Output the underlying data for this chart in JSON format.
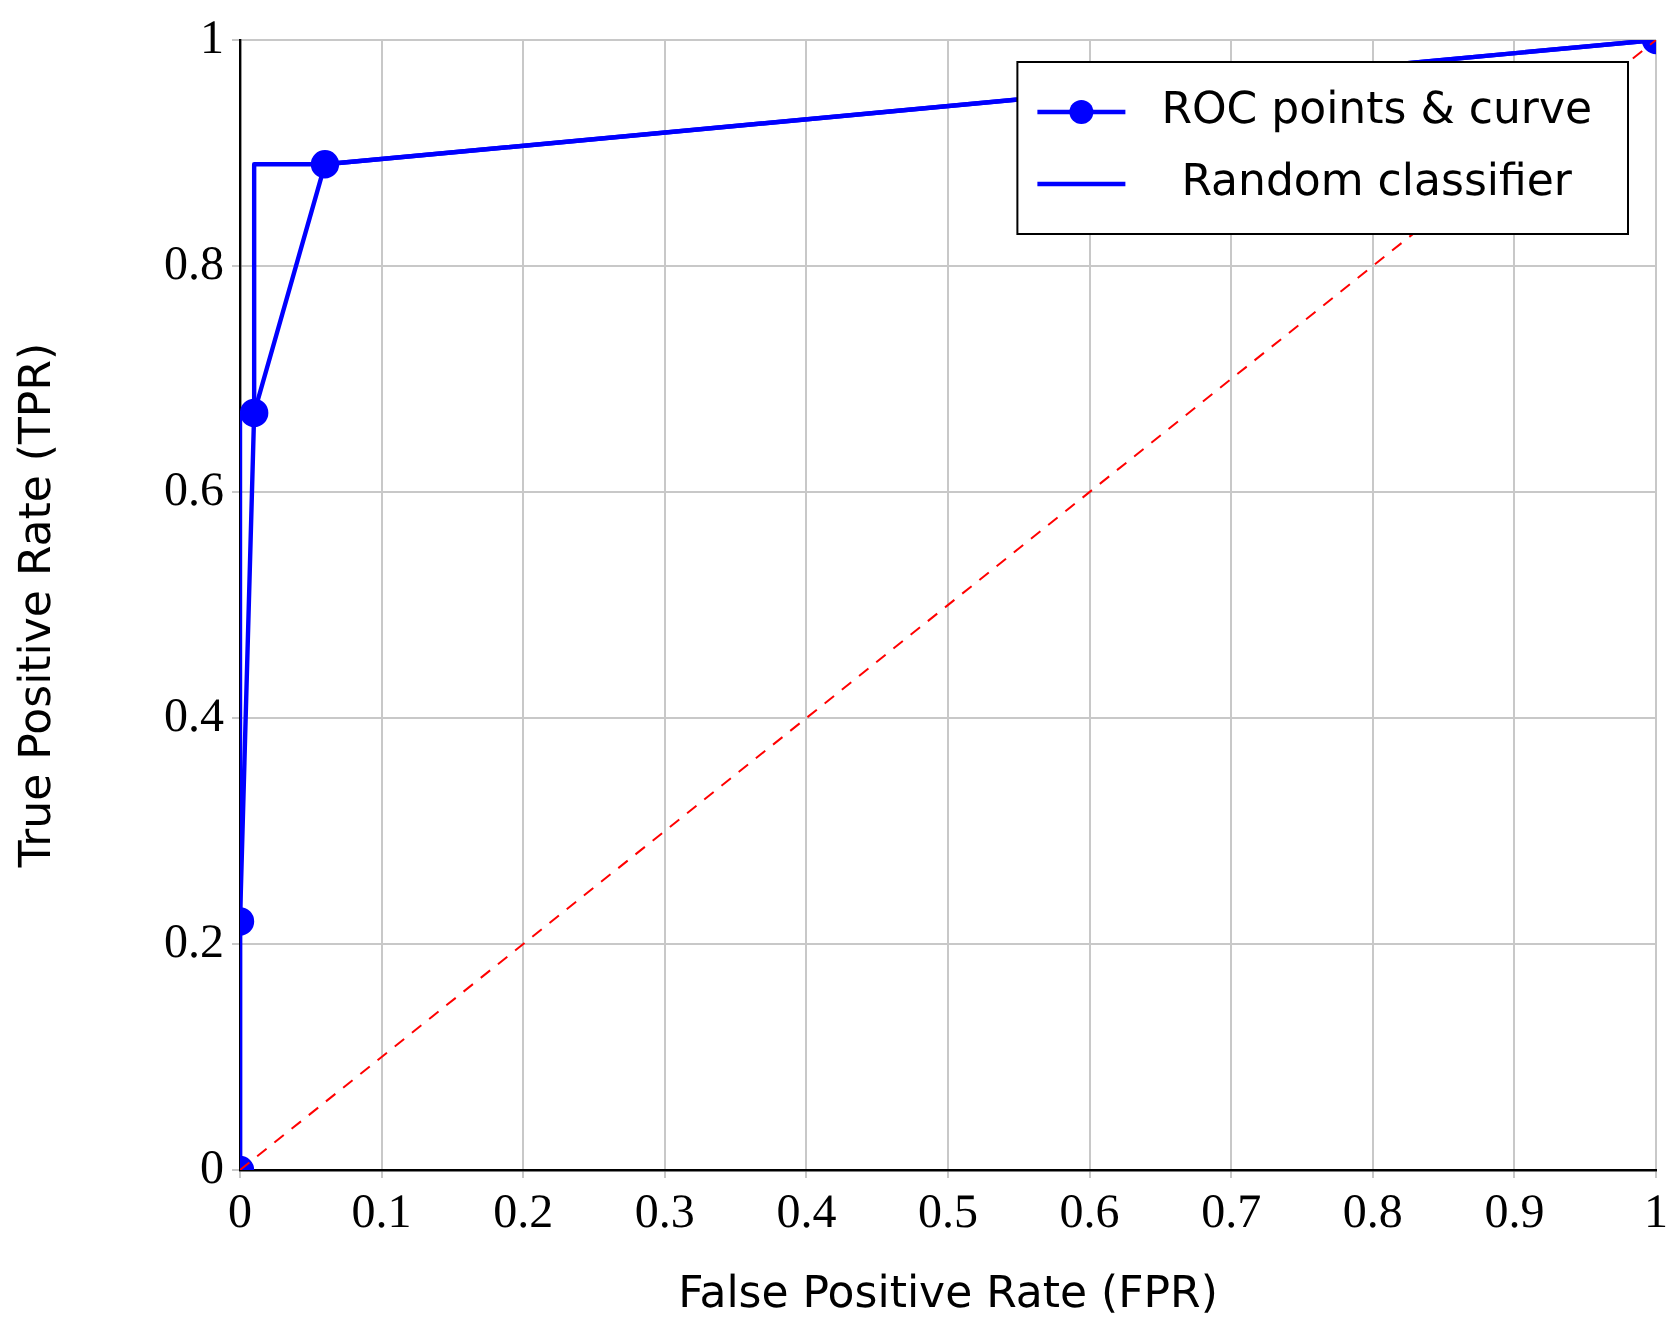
{
  "chart_data": {
    "type": "line",
    "xlabel": "False Positive Rate (FPR)",
    "ylabel": "True Positive Rate (TPR)",
    "xlim": [
      0,
      1
    ],
    "ylim": [
      0,
      1
    ],
    "xticks": [
      0,
      0.1,
      0.2,
      0.3,
      0.4,
      0.5,
      0.6,
      0.7,
      0.8,
      0.9,
      1
    ],
    "yticks": [
      0,
      0.2,
      0.4,
      0.6,
      0.8,
      1
    ],
    "grid": true,
    "legend": "top right",
    "series": [
      {
        "name": "ROC points & curve",
        "color": "#0000ff",
        "marker": "circle",
        "line_style": "solid",
        "x": [
          0,
          0,
          0.01,
          0.06,
          1
        ],
        "values": [
          0,
          0.22,
          0.67,
          0.89,
          1
        ]
      },
      {
        "name": "Random classifier",
        "color": "#0000ff",
        "marker": "none",
        "line_style": "solid",
        "x": [
          0,
          0,
          0.01,
          0.01,
          0.06,
          1
        ],
        "values": [
          0,
          0.67,
          0.67,
          0.89,
          0.89,
          1
        ]
      },
      {
        "color": "#ff0000",
        "marker": "none",
        "line_style": "dashed",
        "x": [
          0,
          1
        ],
        "values": [
          0,
          1
        ]
      }
    ]
  }
}
